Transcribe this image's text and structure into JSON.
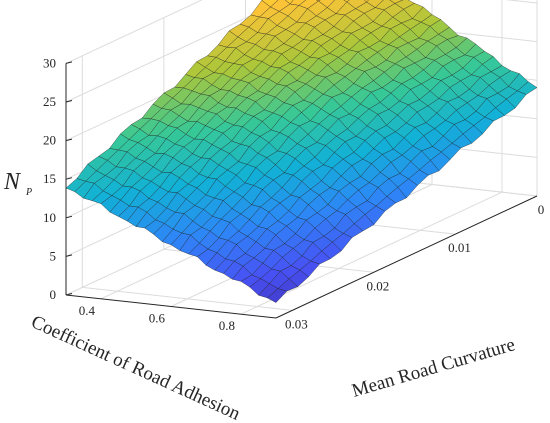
{
  "chart_data": {
    "type": "surface",
    "title": "",
    "x_axis": {
      "label": "Mean Road Curvature",
      "ticks": [
        "0",
        "0.01",
        "0.02",
        "0.03"
      ],
      "range": [
        0,
        0.032
      ]
    },
    "y_axis": {
      "label": "Coefficient of Road Adhesion",
      "ticks": [
        "0.4",
        "0.6",
        "0.8"
      ],
      "range": [
        0.3,
        0.9
      ]
    },
    "z_axis": {
      "label": "N",
      "label_subscript": "P",
      "ticks": [
        "0",
        "5",
        "10",
        "15",
        "20",
        "25",
        "30"
      ],
      "range": [
        0,
        30
      ]
    },
    "corner_values": [
      {
        "curvature": 0.032,
        "adhesion": 0.9,
        "NP": 2
      },
      {
        "curvature": 0.0,
        "adhesion": 0.9,
        "NP": 14
      },
      {
        "curvature": 0.032,
        "adhesion": 0.3,
        "NP": 14
      },
      {
        "curvature": 0.0,
        "adhesion": 0.3,
        "NP": 30
      }
    ],
    "colormap": "parula",
    "grid": true
  }
}
